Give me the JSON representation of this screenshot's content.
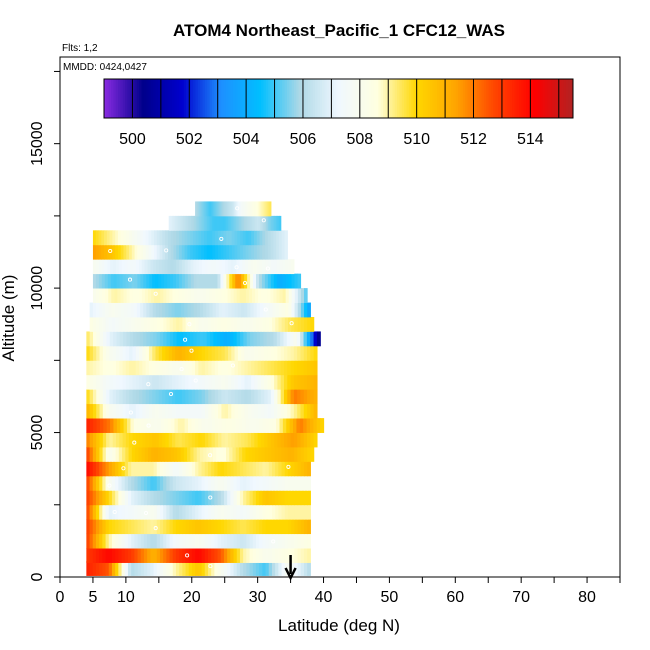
{
  "chart_data": {
    "type": "heatmap",
    "title": "ATOM4 Northeast_Pacific_1 CFC12_WAS",
    "flights": "Flts: 1,2",
    "dates": "MMDD: 0424,0427",
    "xlabel": "Latitude (deg N)",
    "ylabel": "Altitude (m)",
    "xlim": [
      0,
      85
    ],
    "ylim": [
      0,
      18000
    ],
    "x_ticks": [
      0,
      5,
      10,
      20,
      30,
      40,
      50,
      60,
      70,
      80
    ],
    "y_ticks": [
      0,
      5000,
      10000,
      15000
    ],
    "colorbar": {
      "range": [
        499,
        515.5
      ],
      "ticks": [
        500,
        502,
        504,
        506,
        508,
        510,
        512,
        514
      ],
      "colors": [
        "#8a2be2",
        "#00008b",
        "#0000cd",
        "#1e90ff",
        "#00bfff",
        "#add8e6",
        "#f0f8ff",
        "#ffffe0",
        "#ffd700",
        "#ffa500",
        "#ff4500",
        "#ff0000",
        "#b22222"
      ]
    },
    "arrow_latitude": 35,
    "bands": [
      {
        "alt": 300,
        "lat": [
          4,
          38
        ],
        "v": [
          513.5,
          512.5,
          506,
          507,
          509,
          510.5,
          508,
          506,
          505,
          508,
          506
        ]
      },
      {
        "alt": 750,
        "lat": [
          4,
          38
        ],
        "v": [
          513,
          514,
          513,
          511,
          513,
          514,
          512.5,
          509,
          508,
          508.5,
          509
        ]
      },
      {
        "alt": 1250,
        "lat": [
          4,
          38
        ],
        "v": [
          513,
          509,
          507,
          506,
          507.5,
          508,
          507,
          506.5,
          507.5,
          508,
          508.5
        ]
      },
      {
        "alt": 1750,
        "lat": [
          4,
          38
        ],
        "v": [
          513,
          510,
          509.5,
          509,
          510,
          510.5,
          510,
          509.5,
          510,
          510,
          511
        ]
      },
      {
        "alt": 2250,
        "lat": [
          4,
          38
        ],
        "v": [
          513,
          507,
          507.5,
          508,
          506,
          507,
          508,
          507.5,
          508.5,
          509,
          509
        ]
      },
      {
        "alt": 2750,
        "lat": [
          4,
          38
        ],
        "v": [
          513,
          510,
          507,
          506,
          505.5,
          505,
          506,
          509,
          510.5,
          510,
          510
        ]
      },
      {
        "alt": 3250,
        "lat": [
          4,
          38
        ],
        "v": [
          513,
          508,
          506,
          505,
          506.5,
          507,
          508,
          507,
          507.5,
          508,
          508
        ]
      },
      {
        "alt": 3750,
        "lat": [
          4,
          38
        ],
        "v": [
          514,
          511.5,
          509,
          509,
          507.5,
          509,
          510,
          509.5,
          509,
          510,
          511
        ]
      },
      {
        "alt": 4250,
        "lat": [
          4,
          38.5
        ],
        "v": [
          513,
          508,
          510,
          511,
          510.5,
          509,
          508.5,
          510,
          510.5,
          511,
          510
        ]
      },
      {
        "alt": 4750,
        "lat": [
          4,
          39
        ],
        "v": [
          512,
          509,
          510,
          510.5,
          509.5,
          510,
          509,
          509.5,
          510.5,
          511.5,
          510
        ]
      },
      {
        "alt": 5250,
        "lat": [
          4,
          40
        ],
        "v": [
          513.5,
          512,
          508.5,
          508,
          509,
          508,
          508.5,
          508,
          508.5,
          512,
          510
        ]
      },
      {
        "alt": 5750,
        "lat": [
          4,
          39
        ],
        "v": [
          511,
          508,
          507,
          508,
          507.5,
          507.5,
          509,
          508,
          507.5,
          509,
          511
        ]
      },
      {
        "alt": 6250,
        "lat": [
          4,
          39
        ],
        "v": [
          510,
          507,
          506,
          505.5,
          505,
          505.5,
          506.5,
          506,
          507,
          512,
          511
        ]
      },
      {
        "alt": 6750,
        "lat": [
          4,
          39
        ],
        "v": [
          508.5,
          507.5,
          507,
          506.5,
          507,
          507.5,
          508,
          507,
          508.5,
          510.5,
          511
        ]
      },
      {
        "alt": 7250,
        "lat": [
          4,
          39
        ],
        "v": [
          509,
          508.5,
          509,
          508.5,
          508,
          509,
          508.5,
          509,
          509.5,
          510,
          510.5
        ]
      },
      {
        "alt": 7750,
        "lat": [
          4,
          39
        ],
        "v": [
          510,
          508,
          507,
          509.5,
          511,
          510,
          509.5,
          508,
          508.5,
          509,
          510
        ]
      },
      {
        "alt": 8250,
        "lat": [
          4,
          39.5
        ],
        "v": [
          509.5,
          507,
          506,
          505.5,
          504.5,
          505,
          504,
          505.5,
          506,
          508,
          500
        ]
      },
      {
        "alt": 8750,
        "lat": [
          4.5,
          38.5
        ],
        "v": [
          508.5,
          507.5,
          508,
          508.5,
          509,
          508,
          508.5,
          508,
          508.5,
          509.5,
          510
        ]
      },
      {
        "alt": 9250,
        "lat": [
          4.5,
          38
        ],
        "v": [
          507,
          508,
          507.5,
          506,
          505.5,
          506,
          507,
          506.5,
          507.5,
          508.5,
          503.5
        ]
      },
      {
        "alt": 9750,
        "lat": [
          5,
          37.5
        ],
        "v": [
          508,
          509,
          508.5,
          509,
          508.5,
          508,
          508.5,
          509,
          508.5,
          509,
          505
        ]
      },
      {
        "alt": 10250,
        "lat": [
          5,
          36.5
        ],
        "v": [
          506,
          505,
          505.5,
          504.5,
          505,
          506,
          506,
          512,
          506,
          504,
          505
        ]
      },
      {
        "alt": 10750,
        "lat": [
          5,
          35.5
        ],
        "v": [
          508,
          507,
          507.5,
          506.5,
          506,
          507,
          507.5,
          507,
          508,
          507.5,
          508
        ]
      },
      {
        "alt": 11250,
        "lat": [
          5,
          34.5
        ],
        "v": [
          511.5,
          510.5,
          509,
          507.5,
          506,
          505,
          504.5,
          505,
          505.5,
          506,
          507
        ]
      },
      {
        "alt": 11750,
        "lat": [
          5,
          34.5
        ],
        "v": [
          510,
          509,
          508,
          507,
          506,
          505.5,
          505,
          505.5,
          505,
          506,
          507
        ]
      },
      {
        "alt": 12250,
        "lat": [
          16.5,
          33.5
        ],
        "v": [
          507,
          506.5,
          506,
          505.5,
          505,
          505,
          505.5,
          506,
          506.5,
          505.5,
          505
        ]
      },
      {
        "alt": 12750,
        "lat": [
          20.5,
          32
        ],
        "v": [
          506,
          505.5,
          505,
          505.5,
          506,
          506.5,
          507.5,
          508,
          508.5,
          509,
          509.5
        ]
      }
    ]
  }
}
